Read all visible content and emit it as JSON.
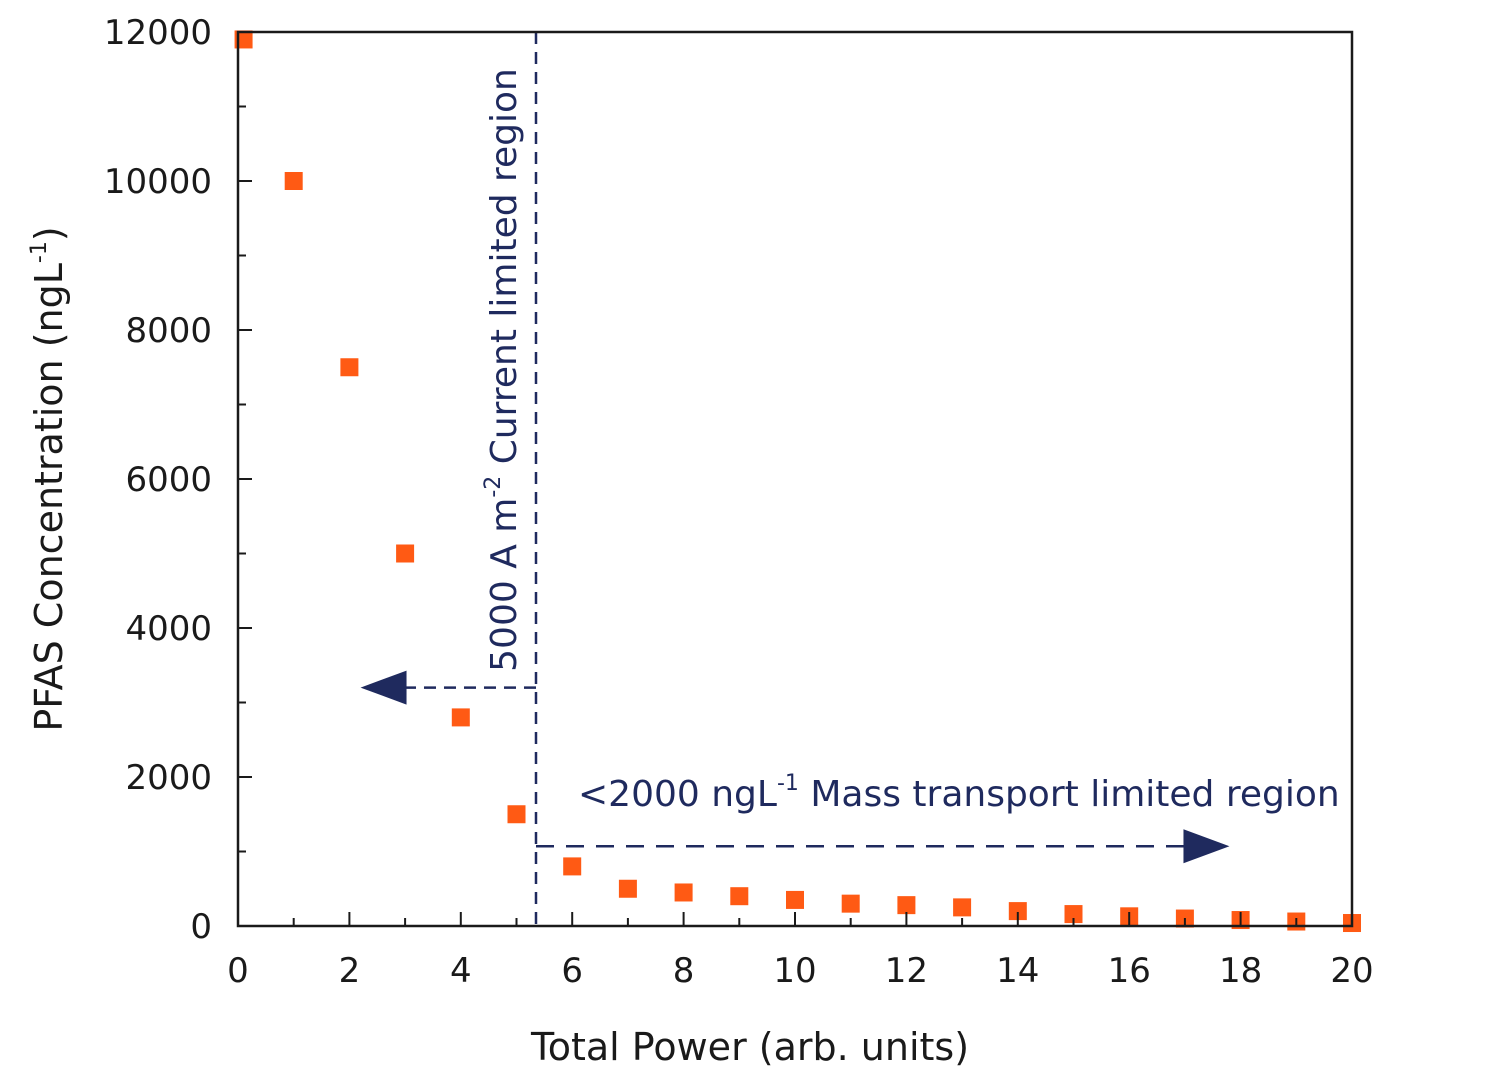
{
  "chart_data": {
    "type": "scatter",
    "title": "",
    "xlabel": "Total Power (arb. units)",
    "ylabel_main": "PFAS Concentration (ngL",
    "ylabel_sup": "-1",
    "ylabel_end": ")",
    "xlim": [
      0,
      20
    ],
    "ylim": [
      0,
      12000
    ],
    "xticks": [
      0,
      2,
      4,
      6,
      8,
      10,
      12,
      14,
      16,
      18,
      20
    ],
    "yticks": [
      0,
      2000,
      4000,
      6000,
      8000,
      10000,
      12000
    ],
    "grid": false,
    "marker_color": "#ff5a14",
    "annotation_color": "#1f2a5e",
    "series": [
      {
        "name": "PFAS",
        "x": [
          0.1,
          1,
          2,
          3,
          4,
          5,
          6,
          7,
          8,
          9,
          10,
          11,
          12,
          13,
          14,
          15,
          16,
          17,
          18,
          19,
          20
        ],
        "y": [
          11900,
          10000,
          7500,
          5000,
          2800,
          1500,
          800,
          500,
          450,
          400,
          350,
          300,
          280,
          250,
          200,
          160,
          130,
          100,
          80,
          60,
          40
        ]
      }
    ],
    "annotations": {
      "threshold_x": 5.35,
      "current_label_main": "5000 A m",
      "current_label_sup": "-2",
      "current_label_end": " Current limited region",
      "current_arrow_y": 3200,
      "current_arrow_to_x": 2.2,
      "mass_label_main": "<2000 ngL",
      "mass_label_sup": "-1",
      "mass_label_end": " Mass transport limited region",
      "mass_arrow_y": 1070,
      "mass_arrow_to_x": 17.8
    }
  }
}
